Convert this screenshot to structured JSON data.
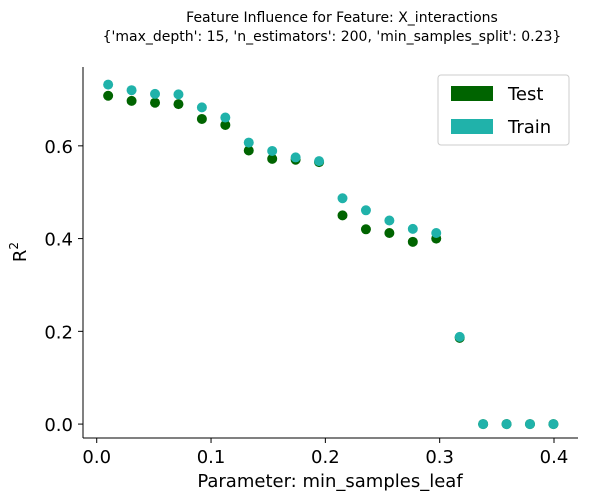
{
  "chart_data": {
    "type": "scatter",
    "title_line1": "Feature Influence for Feature: X_interactions",
    "title_line2": "{'max_depth': 15, 'n_estimators': 200, 'min_samples_split': 0.23}",
    "xlabel": "Parameter: min_samples_leaf",
    "ylabel_main": "R",
    "ylabel_sup": "2",
    "xlim": [
      -0.012,
      0.421
    ],
    "ylim": [
      -0.03,
      0.77
    ],
    "x_ticks": [
      {
        "value": 0.0,
        "label": "0.0"
      },
      {
        "value": 0.1,
        "label": "0.1"
      },
      {
        "value": 0.2,
        "label": "0.2"
      },
      {
        "value": 0.3,
        "label": "0.3"
      },
      {
        "value": 0.4,
        "label": "0.4"
      }
    ],
    "y_ticks": [
      {
        "value": 0.0,
        "label": "0.0"
      },
      {
        "value": 0.2,
        "label": "0.2"
      },
      {
        "value": 0.4,
        "label": "0.4"
      },
      {
        "value": 0.6,
        "label": "0.6"
      }
    ],
    "grid": false,
    "legend_position": "top-right",
    "x": [
      0.01,
      0.0305,
      0.051,
      0.0715,
      0.092,
      0.1125,
      0.133,
      0.1535,
      0.174,
      0.1945,
      0.215,
      0.2355,
      0.256,
      0.2765,
      0.297,
      0.3175,
      0.338,
      0.3585,
      0.379,
      0.3995
    ],
    "series": [
      {
        "name": "Test",
        "color": "#006400",
        "values": [
          0.708,
          0.697,
          0.693,
          0.69,
          0.658,
          0.645,
          0.59,
          0.572,
          0.57,
          0.565,
          0.45,
          0.42,
          0.412,
          0.393,
          0.4,
          0.186,
          0.0,
          0.0,
          0.0,
          0.0
        ]
      },
      {
        "name": "Train",
        "color": "#20b2aa",
        "values": [
          0.732,
          0.72,
          0.712,
          0.711,
          0.683,
          0.661,
          0.607,
          0.589,
          0.575,
          0.567,
          0.487,
          0.461,
          0.439,
          0.421,
          0.412,
          0.188,
          0.0,
          0.0,
          0.0,
          0.0
        ]
      }
    ]
  }
}
